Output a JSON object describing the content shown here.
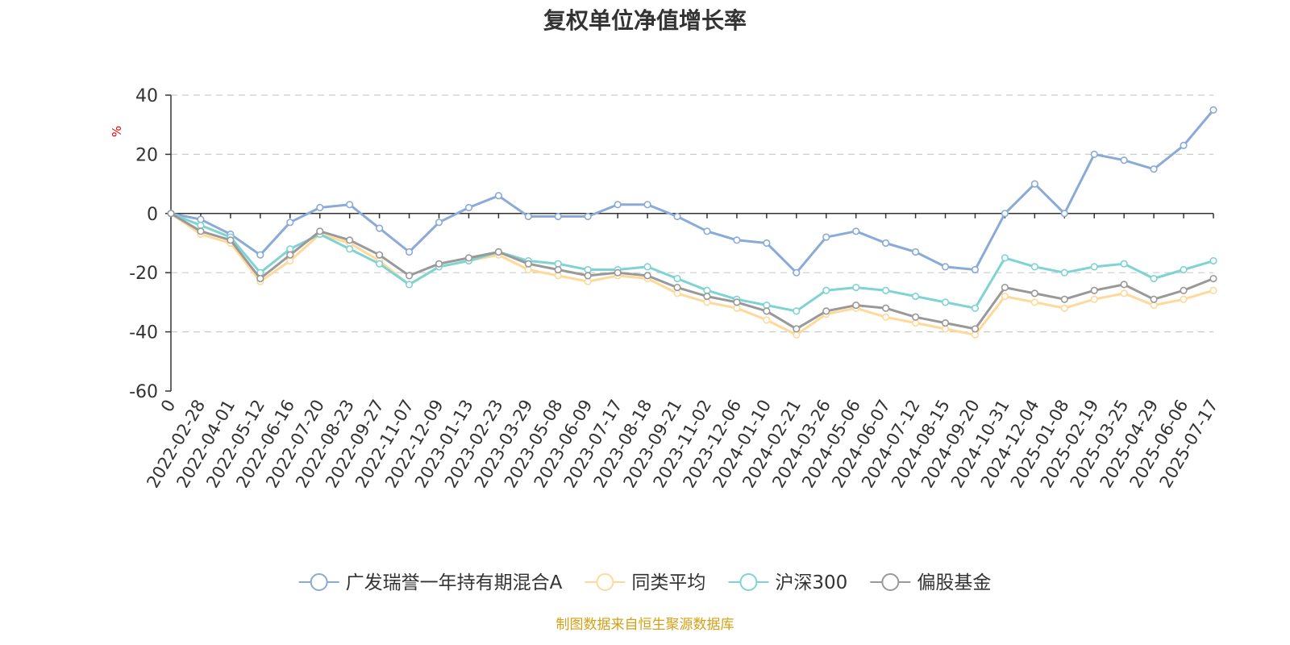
{
  "chart_data": {
    "type": "line",
    "title": "复权单位净值增长率",
    "ylabel": "%",
    "ylim": [
      -60,
      40
    ],
    "yticks": [
      40,
      20,
      0,
      -20,
      -40,
      -60
    ],
    "grid": true,
    "legend_position": "bottom",
    "x_tick_labels": [
      "0",
      "2022-02-28",
      "2022-04-01",
      "2022-05-12",
      "2022-06-16",
      "2022-07-20",
      "2022-08-23",
      "2022-09-27",
      "2022-11-07",
      "2022-12-09",
      "2023-01-13",
      "2023-02-23",
      "2023-03-29",
      "2023-05-08",
      "2023-06-09",
      "2023-07-17",
      "2023-08-18",
      "2023-09-21",
      "2023-11-02",
      "2023-12-06",
      "2024-01-10",
      "2024-02-21",
      "2024-03-26",
      "2024-05-06",
      "2024-06-07",
      "2024-07-12",
      "2024-08-15",
      "2024-09-20",
      "2024-10-31",
      "2024-12-04",
      "2025-01-08",
      "2025-02-19",
      "2025-03-25",
      "2025-04-29",
      "2025-06-06",
      "2025-07-17"
    ],
    "series": [
      {
        "name": "广发瑞誉一年持有期混合A",
        "color": "#8aaad8",
        "values": [
          0,
          -2,
          -7,
          -14,
          -3,
          2,
          3,
          -5,
          -13,
          -3,
          2,
          6,
          -1,
          -1,
          -1,
          3,
          3,
          -1,
          -6,
          -9,
          -10,
          -20,
          -8,
          -6,
          -10,
          -13,
          -18,
          -19,
          0,
          10,
          0,
          20,
          18,
          15,
          23,
          35
        ]
      },
      {
        "name": "同类平均",
        "color": "#ffd99a",
        "values": [
          0,
          -7,
          -10,
          -23,
          -16,
          -7,
          -10,
          -16,
          -24,
          -18,
          -16,
          -14,
          -19,
          -21,
          -23,
          -21,
          -22,
          -27,
          -30,
          -32,
          -36,
          -41,
          -34,
          -32,
          -35,
          -37,
          -39,
          -41,
          -28,
          -30,
          -32,
          -29,
          -27,
          -31,
          -29,
          -26
        ]
      },
      {
        "name": "沪深300",
        "color": "#7fd3d3",
        "values": [
          0,
          -4,
          -8,
          -20,
          -12,
          -7,
          -12,
          -17,
          -24,
          -18,
          -16,
          -13,
          -16,
          -17,
          -19,
          -19,
          -18,
          -22,
          -26,
          -29,
          -31,
          -33,
          -26,
          -25,
          -26,
          -28,
          -30,
          -32,
          -15,
          -18,
          -20,
          -18,
          -17,
          -22,
          -19,
          -16
        ]
      },
      {
        "name": "偏股基金",
        "color": "#999999",
        "values": [
          0,
          -6,
          -9,
          -22,
          -14,
          -6,
          -9,
          -14,
          -21,
          -17,
          -15,
          -13,
          -17,
          -19,
          -21,
          -20,
          -21,
          -25,
          -28,
          -30,
          -33,
          -39,
          -33,
          -31,
          -32,
          -35,
          -37,
          -39,
          -25,
          -27,
          -29,
          -26,
          -24,
          -29,
          -26,
          -22
        ]
      }
    ]
  },
  "source_text": "制图数据来自恒生聚源数据库"
}
